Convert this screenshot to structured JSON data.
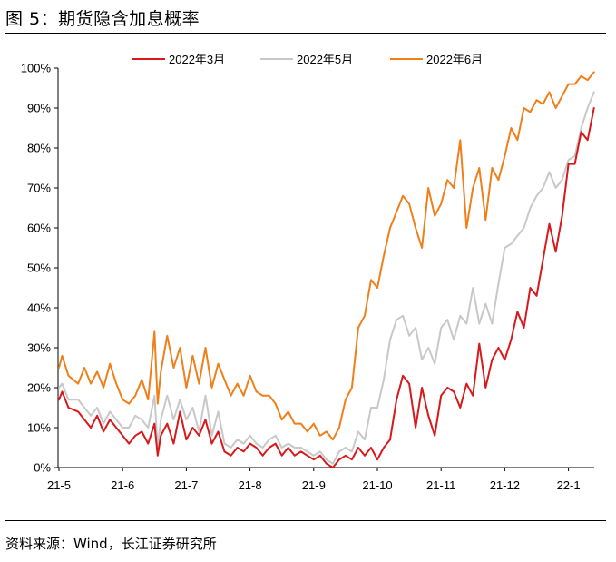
{
  "figure": {
    "title": "图 5：期货隐含加息概率",
    "source": "资料来源：Wind，长江证券研究所"
  },
  "chart_data": {
    "type": "line",
    "title": "期货隐含加息概率",
    "xlabel": "",
    "ylabel": "",
    "x_ticks": [
      "21-5",
      "21-6",
      "21-7",
      "21-8",
      "21-9",
      "21-10",
      "21-11",
      "21-12",
      "22-1"
    ],
    "x_range": [
      0,
      8.4
    ],
    "ylim": [
      0,
      100
    ],
    "y_ticks": [
      0,
      10,
      20,
      30,
      40,
      50,
      60,
      70,
      80,
      90,
      100
    ],
    "y_tick_labels": [
      "0%",
      "10%",
      "20%",
      "30%",
      "40%",
      "50%",
      "60%",
      "70%",
      "80%",
      "90%",
      "100%"
    ],
    "legend_position": "top-center",
    "series": [
      {
        "name": "2022年3月",
        "color": "#d7191c",
        "x": [
          0,
          0.05,
          0.15,
          0.3,
          0.4,
          0.5,
          0.6,
          0.7,
          0.8,
          0.9,
          1.0,
          1.1,
          1.2,
          1.3,
          1.4,
          1.5,
          1.55,
          1.6,
          1.7,
          1.8,
          1.9,
          2.0,
          2.1,
          2.2,
          2.3,
          2.4,
          2.5,
          2.6,
          2.7,
          2.8,
          2.9,
          3.0,
          3.1,
          3.2,
          3.3,
          3.4,
          3.5,
          3.6,
          3.7,
          3.8,
          3.9,
          4.0,
          4.1,
          4.2,
          4.3,
          4.4,
          4.5,
          4.6,
          4.7,
          4.8,
          4.9,
          5.0,
          5.1,
          5.2,
          5.3,
          5.4,
          5.5,
          5.6,
          5.7,
          5.8,
          5.9,
          6.0,
          6.1,
          6.2,
          6.3,
          6.4,
          6.5,
          6.6,
          6.7,
          6.8,
          6.9,
          7.0,
          7.1,
          7.2,
          7.3,
          7.4,
          7.5,
          7.6,
          7.7,
          7.8,
          7.9,
          8.0,
          8.1,
          8.2,
          8.3,
          8.4
        ],
        "values": [
          17,
          19,
          15,
          14,
          12,
          10,
          13,
          9,
          12,
          10,
          8,
          6,
          8,
          9,
          6,
          11,
          3,
          8,
          11,
          6,
          14,
          7,
          10,
          8,
          12,
          6,
          9,
          4,
          3,
          5,
          4,
          6,
          5,
          3,
          5,
          6,
          3,
          5,
          3,
          4,
          3,
          2,
          3,
          1,
          0,
          2,
          3,
          2,
          5,
          3,
          5,
          2,
          5,
          7,
          17,
          23,
          21,
          10,
          20,
          13,
          8,
          18,
          20,
          19,
          15,
          21,
          18,
          31,
          20,
          27,
          30,
          27,
          32,
          39,
          35,
          45,
          43,
          52,
          61,
          54,
          63,
          76,
          76,
          84,
          82,
          90
        ]
      },
      {
        "name": "2022年5月",
        "color": "#c8c8c8",
        "x": [
          0,
          0.05,
          0.15,
          0.3,
          0.4,
          0.5,
          0.6,
          0.7,
          0.8,
          0.9,
          1.0,
          1.1,
          1.2,
          1.3,
          1.4,
          1.5,
          1.55,
          1.6,
          1.7,
          1.8,
          1.9,
          2.0,
          2.1,
          2.2,
          2.3,
          2.4,
          2.5,
          2.6,
          2.7,
          2.8,
          2.9,
          3.0,
          3.1,
          3.2,
          3.3,
          3.4,
          3.5,
          3.6,
          3.7,
          3.8,
          3.9,
          4.0,
          4.1,
          4.2,
          4.3,
          4.4,
          4.5,
          4.6,
          4.7,
          4.8,
          4.9,
          5.0,
          5.1,
          5.2,
          5.3,
          5.4,
          5.5,
          5.6,
          5.7,
          5.8,
          5.9,
          6.0,
          6.1,
          6.2,
          6.3,
          6.4,
          6.5,
          6.6,
          6.7,
          6.8,
          6.9,
          7.0,
          7.1,
          7.2,
          7.3,
          7.4,
          7.5,
          7.6,
          7.7,
          7.8,
          7.9,
          8.0,
          8.1,
          8.2,
          8.3,
          8.4
        ],
        "values": [
          20,
          21,
          17,
          17,
          15,
          13,
          15,
          11,
          14,
          12,
          10,
          10,
          13,
          12,
          10,
          18,
          5,
          12,
          18,
          12,
          17,
          12,
          15,
          9,
          18,
          8,
          14,
          6,
          5,
          7,
          6,
          8,
          6,
          5,
          7,
          8,
          5,
          6,
          5,
          5,
          4,
          3,
          4,
          2,
          1,
          4,
          5,
          4,
          9,
          7,
          15,
          15,
          22,
          32,
          37,
          38,
          33,
          35,
          27,
          30,
          26,
          35,
          37,
          32,
          38,
          36,
          45,
          36,
          41,
          36,
          46,
          55,
          56,
          58,
          60,
          65,
          68,
          70,
          74,
          70,
          72,
          77,
          78,
          85,
          90,
          94
        ]
      },
      {
        "name": "2022年6月",
        "color": "#f07f1a",
        "x": [
          0,
          0.05,
          0.15,
          0.3,
          0.4,
          0.5,
          0.6,
          0.7,
          0.8,
          0.9,
          1.0,
          1.1,
          1.2,
          1.3,
          1.4,
          1.5,
          1.55,
          1.6,
          1.7,
          1.8,
          1.9,
          2.0,
          2.1,
          2.2,
          2.3,
          2.4,
          2.5,
          2.6,
          2.7,
          2.8,
          2.9,
          3.0,
          3.1,
          3.2,
          3.3,
          3.4,
          3.5,
          3.6,
          3.7,
          3.8,
          3.9,
          4.0,
          4.1,
          4.2,
          4.3,
          4.4,
          4.5,
          4.6,
          4.7,
          4.8,
          4.9,
          5.0,
          5.1,
          5.2,
          5.3,
          5.4,
          5.5,
          5.6,
          5.7,
          5.8,
          5.9,
          6.0,
          6.1,
          6.2,
          6.3,
          6.4,
          6.5,
          6.6,
          6.7,
          6.8,
          6.9,
          7.0,
          7.1,
          7.2,
          7.3,
          7.4,
          7.5,
          7.6,
          7.7,
          7.8,
          7.9,
          8.0,
          8.1,
          8.2,
          8.3,
          8.4
        ],
        "values": [
          25,
          28,
          23,
          21,
          25,
          21,
          24,
          20,
          26,
          21,
          17,
          16,
          18,
          22,
          17,
          34,
          16,
          24,
          33,
          25,
          30,
          20,
          28,
          21,
          30,
          20,
          26,
          22,
          18,
          21,
          18,
          23,
          19,
          18,
          18,
          16,
          12,
          14,
          11,
          11,
          9,
          11,
          8,
          9,
          7,
          10,
          17,
          20,
          35,
          38,
          47,
          45,
          53,
          60,
          64,
          68,
          66,
          60,
          55,
          70,
          63,
          66,
          72,
          70,
          82,
          60,
          70,
          75,
          62,
          75,
          72,
          78,
          85,
          82,
          90,
          89,
          92,
          91,
          94,
          90,
          93,
          96,
          96,
          98,
          97,
          99
        ]
      }
    ]
  }
}
